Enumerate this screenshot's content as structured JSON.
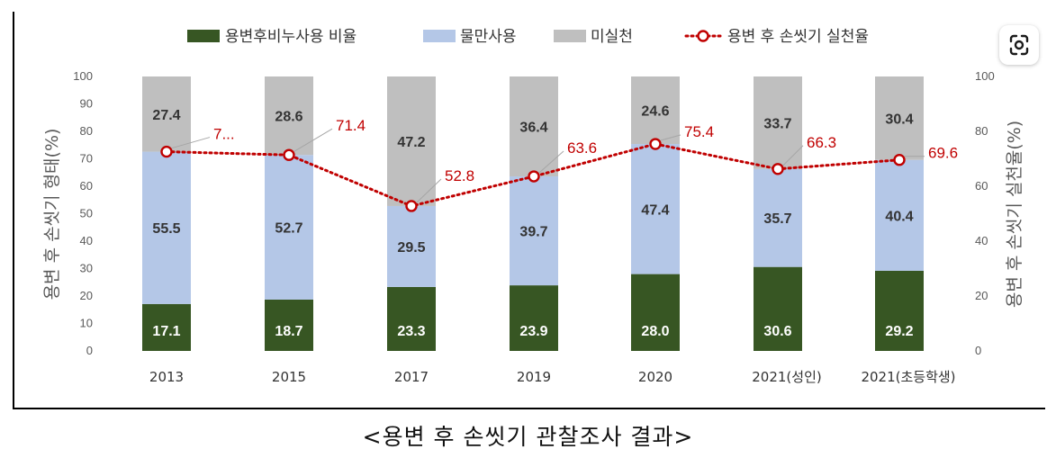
{
  "caption": "<용변 후 손씻기 관찰조사 결과>",
  "colors": {
    "soap": "#375623",
    "water": "#b4c7e7",
    "none": "#bfbfbf",
    "rate": "#c00000",
    "axis_text": "#595959"
  },
  "chart_data": {
    "type": "bar",
    "stacked": true,
    "categories": [
      "2013",
      "2015",
      "2017",
      "2019",
      "2020",
      "2021(성인)",
      "2021(초등학생)"
    ],
    "series": [
      {
        "name": "용변후비누사용 비율",
        "values": [
          17.1,
          18.7,
          23.3,
          23.9,
          28.0,
          30.6,
          29.2
        ],
        "labels": [
          "17.1",
          "18.7",
          "23.3",
          "23.9",
          "28.0",
          "30.6",
          "29.2"
        ]
      },
      {
        "name": "물만사용",
        "values": [
          55.5,
          52.7,
          29.5,
          39.7,
          47.4,
          35.7,
          40.4
        ],
        "labels": [
          "55.5",
          "52.7",
          "29.5",
          "39.7",
          "47.4",
          "35.7",
          "40.4"
        ]
      },
      {
        "name": "미실천",
        "values": [
          27.4,
          28.6,
          47.2,
          36.4,
          24.6,
          33.7,
          30.4
        ],
        "labels": [
          "27.4",
          "28.6",
          "47.2",
          "36.4",
          "24.6",
          "33.7",
          "30.4"
        ]
      }
    ],
    "line_series": {
      "name": "용변 후 손씻기 실천율",
      "values": [
        72.6,
        71.4,
        52.8,
        63.6,
        75.4,
        66.3,
        69.6
      ],
      "labels": [
        "7...",
        "71.4",
        "52.8",
        "63.6",
        "75.4",
        "66.3",
        "69.6"
      ],
      "axis": "right"
    },
    "ylabel_left": "용변 후 손씻기 형태(%)",
    "ylabel_right": "용변 후 손씻기 실천율(%)",
    "ylim_left": [
      0,
      100
    ],
    "ylim_right": [
      0,
      100
    ],
    "yticks_left": [
      "0",
      "10",
      "20",
      "30",
      "40",
      "50",
      "60",
      "70",
      "80",
      "90",
      "100"
    ],
    "yticks_right": [
      "0",
      "20",
      "40",
      "60",
      "80",
      "100"
    ],
    "legend": [
      "용변후비누사용 비율",
      "물만사용",
      "미실천",
      "용변 후 손씻기 실천율"
    ],
    "legend_position": "top"
  },
  "lens_icon": "google-lens-icon"
}
